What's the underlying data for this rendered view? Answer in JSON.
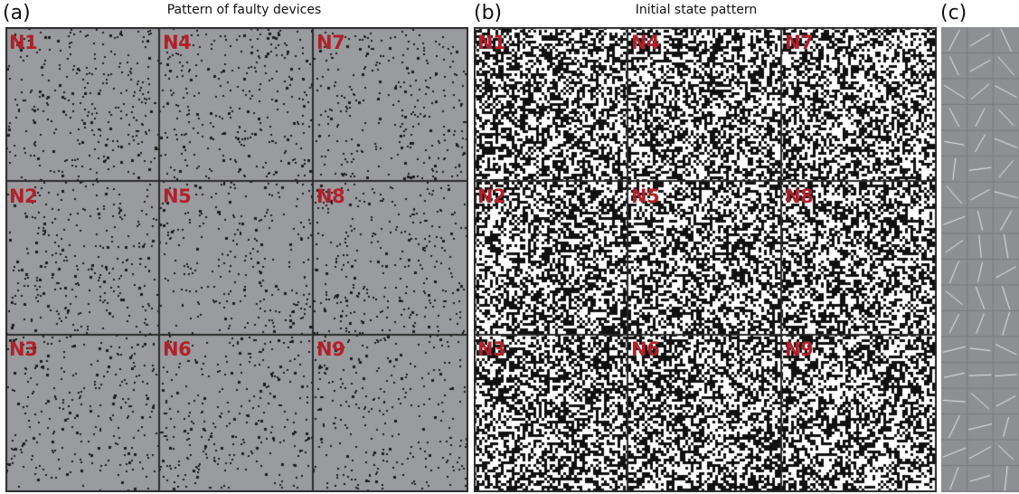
{
  "panels": {
    "a": {
      "letter": "(a)",
      "title": "Pattern of faulty devices"
    },
    "b": {
      "letter": "(b)",
      "title": "Initial state pattern"
    },
    "c": {
      "letter": "(c)"
    }
  },
  "cells": [
    "N1",
    "N4",
    "N7",
    "N2",
    "N5",
    "N8",
    "N3",
    "N6",
    "N9"
  ],
  "colors": {
    "gray_fill": "#9a9b9e",
    "fault_dot": "#1c1c1c",
    "grid_line": "#2a2a2a",
    "label_red": "#b2202a",
    "state_black": "#111111",
    "state_white": "#ffffff",
    "needle_bg": "#8e8f92",
    "needle_stroke": "#e8e8e8"
  }
}
